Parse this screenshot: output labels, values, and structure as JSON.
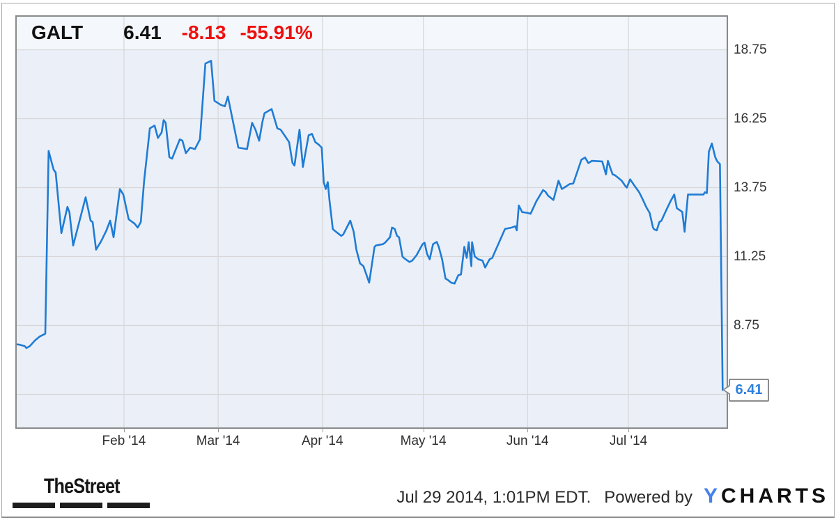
{
  "header": {
    "ticker": "GALT",
    "price": "6.41",
    "change": "-8.13",
    "change_pct": "-55.91%"
  },
  "chart_data": {
    "type": "line",
    "x_unit": "days since Jan 1 2014",
    "x_range_days": [
      -1.3,
      210.6
    ],
    "ylim": [
      5.0,
      20.0
    ],
    "y_ticks": [
      18.75,
      16.25,
      13.75,
      11.25,
      8.75
    ],
    "grid_values": [
      18.75,
      16.25,
      13.75,
      11.25,
      8.75,
      6.25
    ],
    "x_ticks": [
      {
        "label": "Feb '14",
        "day": 31
      },
      {
        "label": "Mar '14",
        "day": 59
      },
      {
        "label": "Apr '14",
        "day": 90
      },
      {
        "label": "May '14",
        "day": 120
      },
      {
        "label": "Jun '14",
        "day": 151
      },
      {
        "label": "Jul '14",
        "day": 181
      }
    ],
    "grid": "on",
    "legend": "none",
    "last_value": 6.41,
    "last_value_label": "6.41",
    "series": [
      {
        "name": "GALT Price",
        "points": [
          [
            -1.3,
            8.07
          ],
          [
            0,
            8.05
          ],
          [
            1.5,
            8.0
          ],
          [
            2,
            7.93
          ],
          [
            3,
            8.0
          ],
          [
            4.5,
            8.2
          ],
          [
            6,
            8.35
          ],
          [
            7.6,
            8.45
          ],
          [
            8.6,
            15.08
          ],
          [
            10.1,
            14.4
          ],
          [
            10.7,
            14.3
          ],
          [
            12.4,
            12.1
          ],
          [
            14.2,
            13.05
          ],
          [
            14.8,
            12.85
          ],
          [
            15.9,
            11.65
          ],
          [
            19.6,
            13.4
          ],
          [
            21.1,
            12.55
          ],
          [
            21.7,
            12.5
          ],
          [
            22.7,
            11.5
          ],
          [
            24.2,
            11.8
          ],
          [
            25.8,
            12.2
          ],
          [
            26.9,
            12.55
          ],
          [
            27.9,
            11.95
          ],
          [
            29.8,
            13.7
          ],
          [
            30.8,
            13.5
          ],
          [
            32.4,
            12.6
          ],
          [
            33.5,
            12.5
          ],
          [
            34.1,
            12.45
          ],
          [
            35.1,
            12.3
          ],
          [
            36,
            12.5
          ],
          [
            37,
            14.0
          ],
          [
            38.7,
            15.9
          ],
          [
            40.1,
            16.0
          ],
          [
            41.1,
            15.55
          ],
          [
            42.2,
            15.75
          ],
          [
            42.8,
            16.2
          ],
          [
            43.4,
            16.1
          ],
          [
            44.5,
            14.85
          ],
          [
            45.3,
            14.8
          ],
          [
            47.6,
            15.5
          ],
          [
            48.4,
            15.45
          ],
          [
            49.4,
            15.0
          ],
          [
            50.7,
            15.2
          ],
          [
            52.1,
            15.15
          ],
          [
            53.6,
            15.5
          ],
          [
            55.2,
            18.25
          ],
          [
            56.9,
            18.35
          ],
          [
            57.9,
            16.9
          ],
          [
            59.8,
            16.75
          ],
          [
            61,
            16.7
          ],
          [
            61.9,
            17.05
          ],
          [
            65,
            15.2
          ],
          [
            67.6,
            15.15
          ],
          [
            69.1,
            16.1
          ],
          [
            70.1,
            15.85
          ],
          [
            71.2,
            15.45
          ],
          [
            72.2,
            16.15
          ],
          [
            72.8,
            16.45
          ],
          [
            74.9,
            16.6
          ],
          [
            76.6,
            15.9
          ],
          [
            77.6,
            15.85
          ],
          [
            80.1,
            15.4
          ],
          [
            81.1,
            14.65
          ],
          [
            81.7,
            14.55
          ],
          [
            83.2,
            15.85
          ],
          [
            84.2,
            14.5
          ],
          [
            85.9,
            15.65
          ],
          [
            86.9,
            15.7
          ],
          [
            87.9,
            15.4
          ],
          [
            89,
            15.3
          ],
          [
            89.8,
            15.2
          ],
          [
            90.4,
            13.95
          ],
          [
            91,
            13.7
          ],
          [
            91.6,
            13.95
          ],
          [
            92.1,
            13.3
          ],
          [
            93.1,
            12.25
          ],
          [
            93.5,
            12.2
          ],
          [
            95.6,
            12.0
          ],
          [
            96.2,
            12.05
          ],
          [
            98.3,
            12.55
          ],
          [
            99.3,
            12.15
          ],
          [
            100.1,
            11.5
          ],
          [
            101.2,
            11.0
          ],
          [
            102.2,
            10.9
          ],
          [
            103.2,
            10.55
          ],
          [
            103.9,
            10.3
          ],
          [
            105.5,
            11.6
          ],
          [
            105.9,
            11.65
          ],
          [
            108,
            11.7
          ],
          [
            108.6,
            11.75
          ],
          [
            110.1,
            11.95
          ],
          [
            110.7,
            12.3
          ],
          [
            111.5,
            12.25
          ],
          [
            112.2,
            12.0
          ],
          [
            112.8,
            11.95
          ],
          [
            113.8,
            11.25
          ],
          [
            114.2,
            11.2
          ],
          [
            115.9,
            11.05
          ],
          [
            116.7,
            11.1
          ],
          [
            118,
            11.3
          ],
          [
            119.8,
            11.7
          ],
          [
            120.4,
            11.75
          ],
          [
            121.1,
            11.35
          ],
          [
            121.9,
            11.15
          ],
          [
            122.9,
            11.7
          ],
          [
            124,
            11.78
          ],
          [
            124.6,
            11.6
          ],
          [
            125.6,
            11.15
          ],
          [
            126.6,
            10.45
          ],
          [
            127.3,
            10.4
          ],
          [
            128.3,
            10.3
          ],
          [
            129.3,
            10.27
          ],
          [
            130.4,
            10.57
          ],
          [
            131.2,
            10.6
          ],
          [
            132.2,
            11.6
          ],
          [
            132.9,
            11.2
          ],
          [
            133.5,
            11.77
          ],
          [
            134.3,
            10.9
          ],
          [
            134.5,
            11.77
          ],
          [
            135.3,
            11.25
          ],
          [
            136.4,
            11.15
          ],
          [
            137.6,
            11.1
          ],
          [
            138.4,
            10.85
          ],
          [
            139.7,
            11.15
          ],
          [
            140.5,
            11.2
          ],
          [
            141.2,
            11.4
          ],
          [
            144.3,
            12.25
          ],
          [
            146.3,
            12.3
          ],
          [
            147.3,
            12.35
          ],
          [
            147.8,
            12.2
          ],
          [
            148.4,
            13.1
          ],
          [
            149.4,
            12.86
          ],
          [
            151.1,
            12.83
          ],
          [
            151.9,
            12.8
          ],
          [
            153.6,
            13.25
          ],
          [
            155.6,
            13.66
          ],
          [
            156.3,
            13.6
          ],
          [
            157.1,
            13.46
          ],
          [
            158.7,
            13.3
          ],
          [
            160.2,
            14.0
          ],
          [
            161.2,
            13.7
          ],
          [
            161.9,
            13.75
          ],
          [
            163.5,
            13.88
          ],
          [
            164.6,
            13.9
          ],
          [
            167,
            14.76
          ],
          [
            168.1,
            14.84
          ],
          [
            169.1,
            14.64
          ],
          [
            170.1,
            14.72
          ],
          [
            173.2,
            14.7
          ],
          [
            174.3,
            14.23
          ],
          [
            174.9,
            14.72
          ],
          [
            175.7,
            14.43
          ],
          [
            176.3,
            14.23
          ],
          [
            177,
            14.2
          ],
          [
            178,
            14.1
          ],
          [
            179,
            14.0
          ],
          [
            180.1,
            13.8
          ],
          [
            180.5,
            13.75
          ],
          [
            181.5,
            14.05
          ],
          [
            182.5,
            13.87
          ],
          [
            184.2,
            13.58
          ],
          [
            185.2,
            13.33
          ],
          [
            186.3,
            13.04
          ],
          [
            187.3,
            12.83
          ],
          [
            188.3,
            12.3
          ],
          [
            188.7,
            12.23
          ],
          [
            189.4,
            12.2
          ],
          [
            190.2,
            12.5
          ],
          [
            190.8,
            12.55
          ],
          [
            192.5,
            13.0
          ],
          [
            193.5,
            13.25
          ],
          [
            194.6,
            13.5
          ],
          [
            195.4,
            13.0
          ],
          [
            197,
            12.87
          ],
          [
            197.7,
            12.15
          ],
          [
            198.7,
            13.5
          ],
          [
            203.3,
            13.5
          ],
          [
            203.7,
            13.58
          ],
          [
            204.3,
            13.55
          ],
          [
            204.9,
            15.05
          ],
          [
            205.8,
            15.35
          ],
          [
            206.8,
            14.85
          ],
          [
            207.4,
            14.7
          ],
          [
            208.2,
            14.6
          ],
          [
            209,
            6.41
          ]
        ]
      }
    ]
  },
  "footer": {
    "brand": "TheStreet",
    "timestamp": "Jul 29 2014, 1:01PM EDT.",
    "powered_by": "Powered by",
    "logo_y": "Y",
    "logo_charts": "CHARTS"
  },
  "colors": {
    "line": "#1f7cd4",
    "accent_red": "#ee0f0f",
    "ticker_black": "#111111",
    "plot_bg": "#ebeff8",
    "plot_band": "#f4f7fb",
    "gridline": "#d7d7d7",
    "plot_border": "#8a8a8a",
    "callout_text": "#2e80dd",
    "ycharts_blue": "#4481eb"
  }
}
